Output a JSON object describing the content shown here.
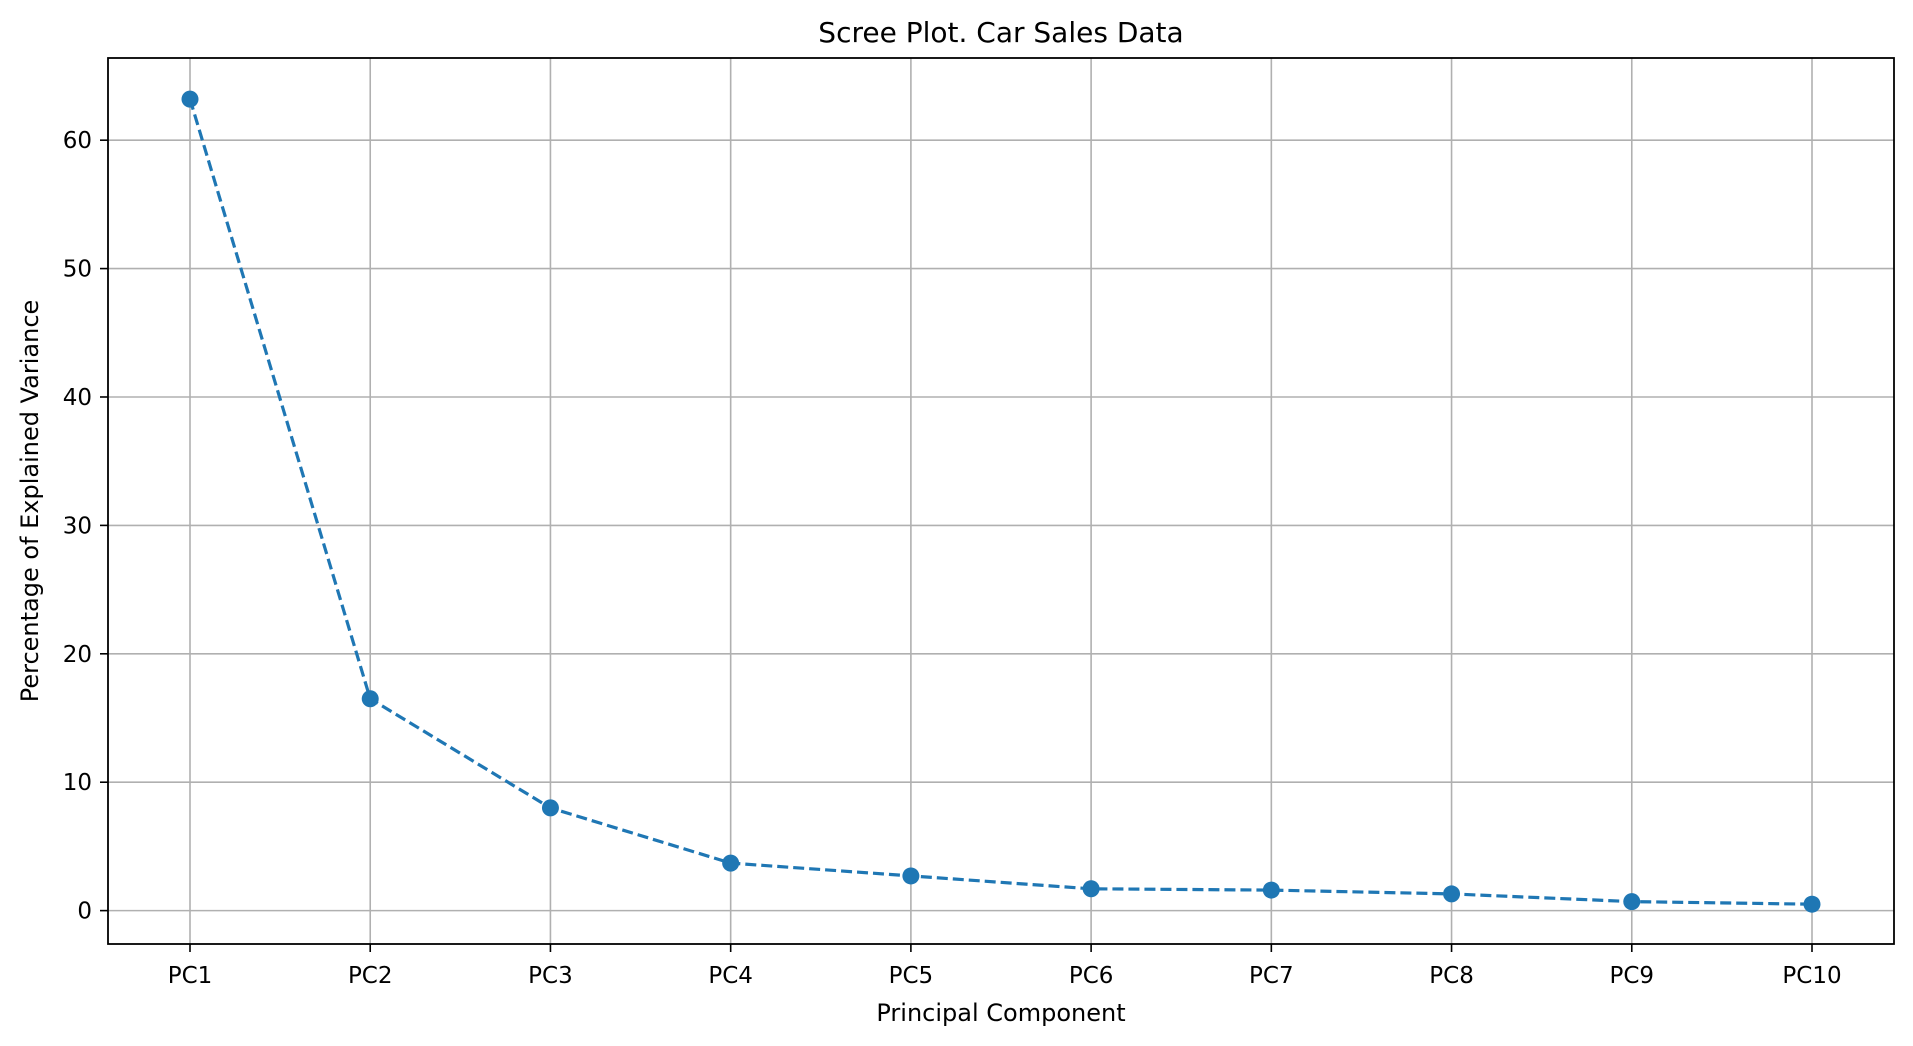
{
  "chart_data": {
    "type": "line",
    "title": "Scree Plot. Car Sales Data",
    "xlabel": "Principal Component",
    "ylabel": "Percentage of Explained Variance",
    "categories": [
      "PC1",
      "PC2",
      "PC3",
      "PC4",
      "PC5",
      "PC6",
      "PC7",
      "PC8",
      "PC9",
      "PC10"
    ],
    "series": [
      {
        "values": [
          63.2,
          16.5,
          8.0,
          3.7,
          2.7,
          1.7,
          1.6,
          1.3,
          0.7,
          0.5
        ],
        "color": "#1f77b4",
        "line_style": "dashed",
        "marker": "circle"
      }
    ],
    "ylim": [
      -2.6,
      66.4
    ],
    "yticks": [
      0,
      10,
      20,
      30,
      40,
      50,
      60
    ],
    "grid": true,
    "legend": "none"
  }
}
